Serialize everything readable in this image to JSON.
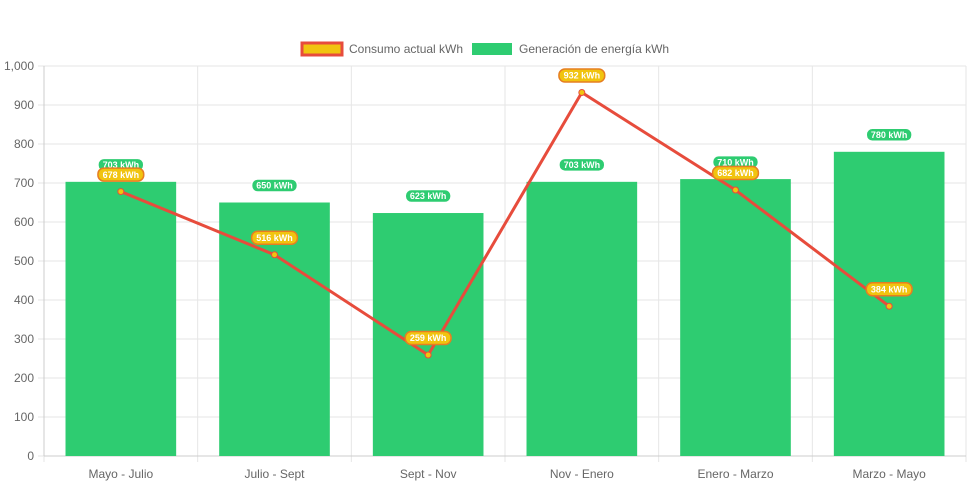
{
  "chart_data": {
    "type": "bar",
    "categories": [
      "Mayo - Julio",
      "Julio - Sept",
      "Sept - Nov",
      "Nov - Enero",
      "Enero - Marzo",
      "Marzo - Mayo"
    ],
    "series": [
      {
        "name": "Consumo actual kWh",
        "type": "line",
        "values": [
          678,
          516,
          259,
          932,
          682,
          384
        ],
        "labels": [
          "678 kWh",
          "516 kWh",
          "259 kWh",
          "932 kWh",
          "682 kWh",
          "384 kWh"
        ],
        "color": "#e74c3c",
        "fill": "#f1c40f"
      },
      {
        "name": "Generación de energía kWh",
        "type": "bar",
        "values": [
          703,
          650,
          623,
          703,
          710,
          780
        ],
        "labels": [
          "703 kWh",
          "650 kWh",
          "623 kWh",
          "703 kWh",
          "710 kWh",
          "780 kWh"
        ],
        "color": "#2ecc71"
      }
    ],
    "y_ticks": [
      "0",
      "100",
      "200",
      "300",
      "400",
      "500",
      "600",
      "700",
      "800",
      "900",
      "1,000"
    ],
    "ylim": [
      0,
      1000
    ],
    "grid": true,
    "legend": "top-center"
  }
}
